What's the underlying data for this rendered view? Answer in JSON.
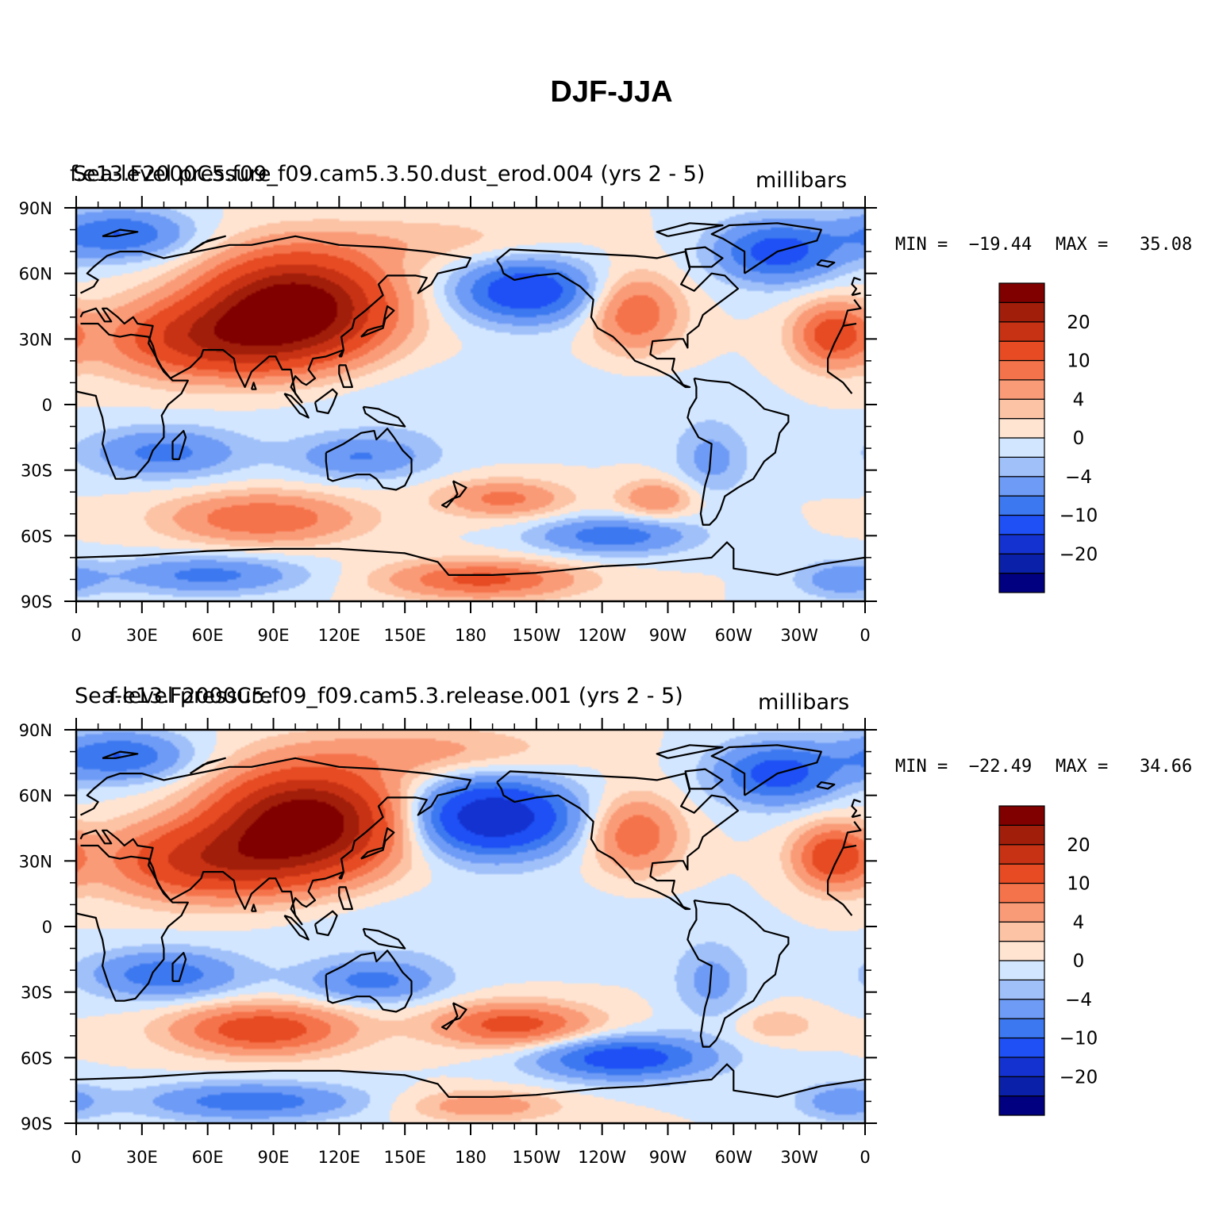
{
  "figure": {
    "title": "DJF-JJA"
  },
  "palette": [
    "#000080",
    "#0a20a8",
    "#1432d0",
    "#1e50f5",
    "#3c78f0",
    "#6e9bf5",
    "#a0c0fa",
    "#d2e6ff",
    "#ffe4d2",
    "#fcc3a5",
    "#fa9b78",
    "#f5734b",
    "#e64b23",
    "#c83214",
    "#a01e0a",
    "#800000"
  ],
  "continents_color": "#000000",
  "chart_data": [
    {
      "type": "heatmap",
      "map_projection": "cylindrical-equidistant",
      "left_title": "Sea-level pressure",
      "center_title": "f.e13.F2000C5.f09_f09.cam5.3.50.dust_erod.004  (yrs  2 - 5)",
      "units": "millibars",
      "min_label": "MIN =  −19.44",
      "max_label": "MAX =   35.08",
      "min": -19.44,
      "max": 35.08,
      "lon_ticks": [
        "0",
        "30E",
        "60E",
        "90E",
        "120E",
        "150E",
        "180",
        "150W",
        "120W",
        "90W",
        "60W",
        "30W",
        "0"
      ],
      "lat_ticks": [
        "90N",
        "60N",
        "30N",
        "0",
        "30S",
        "60S",
        "90S"
      ],
      "lon_range": [
        0,
        360
      ],
      "lat_range": [
        -90,
        90
      ],
      "contour_levels": [
        -25,
        -20,
        -15,
        -10,
        -7,
        -4,
        -2,
        0,
        2,
        4,
        7,
        10,
        15,
        20,
        25
      ],
      "colorbar_labels": [
        "20",
        "10",
        "4",
        "0",
        "−4",
        "−10",
        "−20"
      ],
      "colorbar_label_values": [
        20,
        10,
        4,
        0,
        -4,
        -10,
        -20
      ],
      "highs": [
        {
          "lon": 100,
          "lat": 45,
          "amp": 30,
          "sx": 28,
          "sy": 16
        },
        {
          "lon": 60,
          "lat": 30,
          "amp": 16,
          "sx": 32,
          "sy": 12
        },
        {
          "lon": 255,
          "lat": 42,
          "amp": 10,
          "sx": 14,
          "sy": 12
        },
        {
          "lon": 345,
          "lat": 32,
          "amp": 12,
          "sx": 12,
          "sy": 10
        },
        {
          "lon": 85,
          "lat": -52,
          "amp": 10,
          "sx": 30,
          "sy": 8
        },
        {
          "lon": 195,
          "lat": -43,
          "amp": 8,
          "sx": 20,
          "sy": 6
        },
        {
          "lon": 265,
          "lat": -43,
          "amp": 7,
          "sx": 12,
          "sy": 6
        },
        {
          "lon": 185,
          "lat": -80,
          "amp": 11,
          "sx": 30,
          "sy": 6
        },
        {
          "lon": 160,
          "lat": 75,
          "amp": 3,
          "sx": 40,
          "sy": 8
        }
      ],
      "lows": [
        {
          "lon": 20,
          "lat": 78,
          "amp": 10,
          "sx": 22,
          "sy": 8
        },
        {
          "lon": 320,
          "lat": 70,
          "amp": 12,
          "sx": 20,
          "sy": 10
        },
        {
          "lon": 205,
          "lat": 52,
          "amp": 14,
          "sx": 22,
          "sy": 10
        },
        {
          "lon": 40,
          "lat": -22,
          "amp": 8,
          "sx": 25,
          "sy": 8
        },
        {
          "lon": 130,
          "lat": -24,
          "amp": 7,
          "sx": 22,
          "sy": 7
        },
        {
          "lon": 290,
          "lat": -25,
          "amp": 5,
          "sx": 12,
          "sy": 12
        },
        {
          "lon": 245,
          "lat": -60,
          "amp": 9,
          "sx": 25,
          "sy": 6
        },
        {
          "lon": 60,
          "lat": -78,
          "amp": 8,
          "sx": 30,
          "sy": 6
        },
        {
          "lon": 350,
          "lat": -80,
          "amp": 6,
          "sx": 15,
          "sy": 6
        },
        {
          "lon": 180,
          "lat": 0,
          "amp": 2,
          "sx": 60,
          "sy": 12
        }
      ]
    },
    {
      "type": "heatmap",
      "map_projection": "cylindrical-equidistant",
      "left_title": "Sea-level pressure",
      "center_title": "f.e13.F2000C5.f09_f09.cam5.3.release.001  (yrs  2 - 5)",
      "units": "millibars",
      "min_label": "MIN =  −22.49",
      "max_label": "MAX =   34.66",
      "min": -22.49,
      "max": 34.66,
      "lon_ticks": [
        "0",
        "30E",
        "60E",
        "90E",
        "120E",
        "150E",
        "180",
        "150W",
        "120W",
        "90W",
        "60W",
        "30W",
        "0"
      ],
      "lat_ticks": [
        "90N",
        "60N",
        "30N",
        "0",
        "30S",
        "60S",
        "90S"
      ],
      "lon_range": [
        0,
        360
      ],
      "lat_range": [
        -90,
        90
      ],
      "contour_levels": [
        -25,
        -20,
        -15,
        -10,
        -7,
        -4,
        -2,
        0,
        2,
        4,
        7,
        10,
        15,
        20,
        25
      ],
      "colorbar_labels": [
        "20",
        "10",
        "4",
        "0",
        "−4",
        "−10",
        "−20"
      ],
      "colorbar_label_values": [
        20,
        10,
        4,
        0,
        -4,
        -10,
        -20
      ],
      "highs": [
        {
          "lon": 105,
          "lat": 48,
          "amp": 30,
          "sx": 28,
          "sy": 16
        },
        {
          "lon": 60,
          "lat": 30,
          "amp": 16,
          "sx": 32,
          "sy": 12
        },
        {
          "lon": 255,
          "lat": 42,
          "amp": 10,
          "sx": 14,
          "sy": 12
        },
        {
          "lon": 345,
          "lat": 32,
          "amp": 13,
          "sx": 12,
          "sy": 10
        },
        {
          "lon": 85,
          "lat": -47,
          "amp": 13,
          "sx": 28,
          "sy": 8
        },
        {
          "lon": 200,
          "lat": -45,
          "amp": 12,
          "sx": 25,
          "sy": 7
        },
        {
          "lon": 320,
          "lat": -45,
          "amp": 4,
          "sx": 12,
          "sy": 5
        },
        {
          "lon": 185,
          "lat": -82,
          "amp": 6,
          "sx": 25,
          "sy": 5
        },
        {
          "lon": 160,
          "lat": 80,
          "amp": 5,
          "sx": 40,
          "sy": 8
        }
      ],
      "lows": [
        {
          "lon": 20,
          "lat": 78,
          "amp": 10,
          "sx": 22,
          "sy": 8
        },
        {
          "lon": 320,
          "lat": 70,
          "amp": 12,
          "sx": 20,
          "sy": 10
        },
        {
          "lon": 190,
          "lat": 50,
          "amp": 20,
          "sx": 25,
          "sy": 12
        },
        {
          "lon": 40,
          "lat": -22,
          "amp": 9,
          "sx": 25,
          "sy": 8
        },
        {
          "lon": 135,
          "lat": -25,
          "amp": 8,
          "sx": 22,
          "sy": 7
        },
        {
          "lon": 290,
          "lat": -25,
          "amp": 5,
          "sx": 12,
          "sy": 12
        },
        {
          "lon": 250,
          "lat": -60,
          "amp": 13,
          "sx": 28,
          "sy": 7
        },
        {
          "lon": 80,
          "lat": -80,
          "amp": 9,
          "sx": 35,
          "sy": 6
        },
        {
          "lon": 350,
          "lat": -80,
          "amp": 6,
          "sx": 15,
          "sy": 6
        },
        {
          "lon": 180,
          "lat": 0,
          "amp": 2,
          "sx": 60,
          "sy": 12
        }
      ]
    }
  ]
}
